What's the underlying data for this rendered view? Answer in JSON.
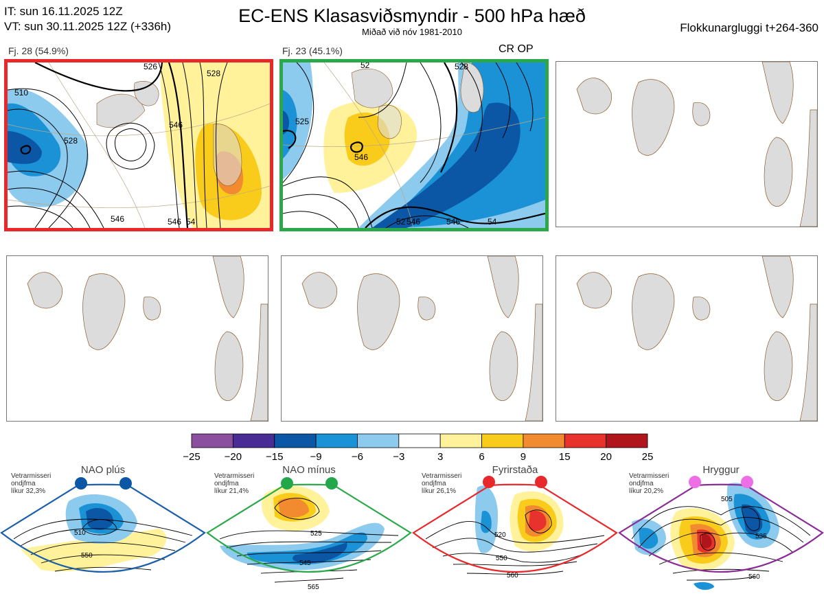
{
  "header": {
    "it_line": "IT: sun 16.11.2025 12Z",
    "vt_line": "VT: sun 30.11.2025 12Z  (+336h)",
    "title": "EC-ENS Klasasviðsmyndir - 500 hPa hæð",
    "subtitle": "Miðað við nóv 1981-2010",
    "window": "Flokkunargluggi t+264-360"
  },
  "panels": [
    {
      "label": "Fj. 28 (54.9%)",
      "border": "#e8282a",
      "contours": [
        "510",
        "528",
        "526",
        "528",
        "546",
        "546",
        "546",
        "54"
      ]
    },
    {
      "label": "Fj. 23 (45.1%)",
      "tag": "CR OP",
      "border": "#2aa84a",
      "contours": [
        "52",
        "525",
        "546",
        "528",
        "52",
        "546",
        "546",
        "54"
      ]
    },
    {
      "label": ""
    },
    {
      "label": ""
    },
    {
      "label": ""
    },
    {
      "label": ""
    }
  ],
  "colorbar": {
    "colors": [
      "#8b4fa0",
      "#4a2d94",
      "#0b56a5",
      "#1b92d6",
      "#8ccaee",
      "#ffffff",
      "#fff29a",
      "#f9cb1a",
      "#f28b30",
      "#e8322c",
      "#b0151b"
    ],
    "ticks": [
      "−25",
      "−20",
      "−15",
      "−9",
      "−6",
      "−3",
      "3",
      "6",
      "9",
      "15",
      "20",
      "25"
    ]
  },
  "regimes": [
    {
      "title": "NAO plús",
      "note": [
        "Vetrarmisseri",
        "ondjfma",
        "líkur 32,3%"
      ],
      "color": "#1b5fa8",
      "dot": "#0b56a5",
      "labels": [
        "510",
        "550"
      ]
    },
    {
      "title": "NAO mínus",
      "note": [
        "Vetrarmisseri",
        "ondjfma",
        "líkur 21,4%"
      ],
      "color": "#2aa84a",
      "dot": "#22a84a",
      "labels": [
        "525",
        "545",
        "565"
      ]
    },
    {
      "title": "Fyrirstaða",
      "note": [
        "Vetrarmisseri",
        "ondjfma",
        "líkur 26,1%"
      ],
      "color": "#e8282a",
      "dot": "#e8282a",
      "labels": [
        "520",
        "550",
        "560"
      ]
    },
    {
      "title": "Hryggur",
      "note": [
        "Vetrarmisseri",
        "ondjfma",
        "líkur 20,2%"
      ],
      "color": "#8a2c96",
      "dot": "#ee6ee8",
      "labels": [
        "505",
        "535",
        "560"
      ]
    }
  ]
}
